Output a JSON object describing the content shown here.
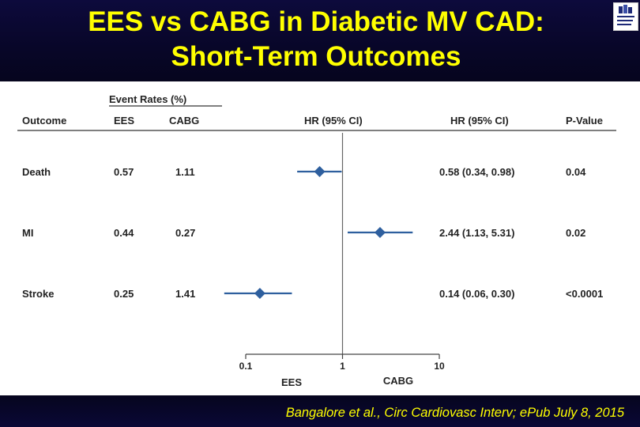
{
  "slide": {
    "title_line1": "EES vs CABG in Diabetic MV CAD:",
    "title_line2": "Short-Term Outcomes",
    "citation": "Bangalore et al., Circ Cardiovasc Interv; ePub July 8, 2015",
    "title_color": "#ffff00",
    "logo_icon": "mount-sinai-logo",
    "logo_text": "Mount Sinai"
  },
  "chart_data": {
    "type": "forest",
    "group_header": "Event Rates (%)",
    "columns": {
      "outcome": "Outcome",
      "ees": "EES",
      "cabg": "CABG",
      "plot_header": "HR (95% CI)",
      "hr_text": "HR (95% CI)",
      "p_value": "P-Value"
    },
    "rows": [
      {
        "outcome": "Death",
        "ees": "0.57",
        "cabg": "1.11",
        "hr": 0.58,
        "lower": 0.34,
        "upper": 0.98,
        "hr_text": "0.58 (0.34, 0.98)",
        "p": "0.04"
      },
      {
        "outcome": "MI",
        "ees": "0.44",
        "cabg": "0.27",
        "hr": 2.44,
        "lower": 1.13,
        "upper": 5.31,
        "hr_text": "2.44 (1.13, 5.31)",
        "p": "0.02"
      },
      {
        "outcome": "Stroke",
        "ees": "0.25",
        "cabg": "1.41",
        "hr": 0.14,
        "lower": 0.06,
        "upper": 0.3,
        "hr_text": "0.14 (0.06, 0.30)",
        "p": "<0.0001"
      }
    ],
    "x_scale": "log",
    "xlim": [
      0.1,
      10
    ],
    "x_ticks": [
      0.1,
      1,
      10
    ],
    "x_tick_labels": [
      "0.1",
      "1",
      "10"
    ],
    "reference_line": 1,
    "favors_left": "EES",
    "favors_right": "CABG",
    "marker_color": "#2e5f9e"
  }
}
